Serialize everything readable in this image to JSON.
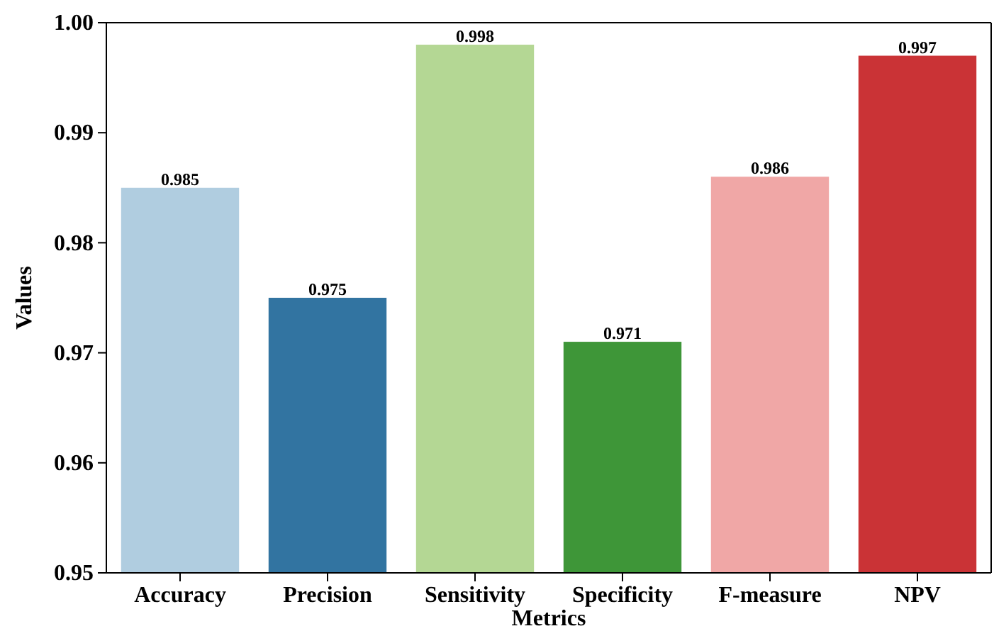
{
  "chart_data": {
    "type": "bar",
    "xlabel": "Metrics",
    "ylabel": "Values",
    "categories": [
      "Accuracy",
      "Precision",
      "Sensitivity",
      "Specificity",
      "F-measure",
      "NPV"
    ],
    "values": [
      0.985,
      0.975,
      0.998,
      0.971,
      0.986,
      0.997
    ],
    "colors": [
      "#b0cde0",
      "#3274a1",
      "#b4d794",
      "#3e9638",
      "#f0a7a6",
      "#ca3336"
    ],
    "ylim": [
      0.95,
      1.0
    ],
    "yticks": [
      {
        "value": 0.95,
        "label": "0.95"
      },
      {
        "value": 0.96,
        "label": "0.96"
      },
      {
        "value": 0.97,
        "label": "0.97"
      },
      {
        "value": 0.98,
        "label": "0.98"
      },
      {
        "value": 0.99,
        "label": "0.99"
      },
      {
        "value": 1.0,
        "label": "1.00"
      }
    ],
    "data_labels": true
  }
}
